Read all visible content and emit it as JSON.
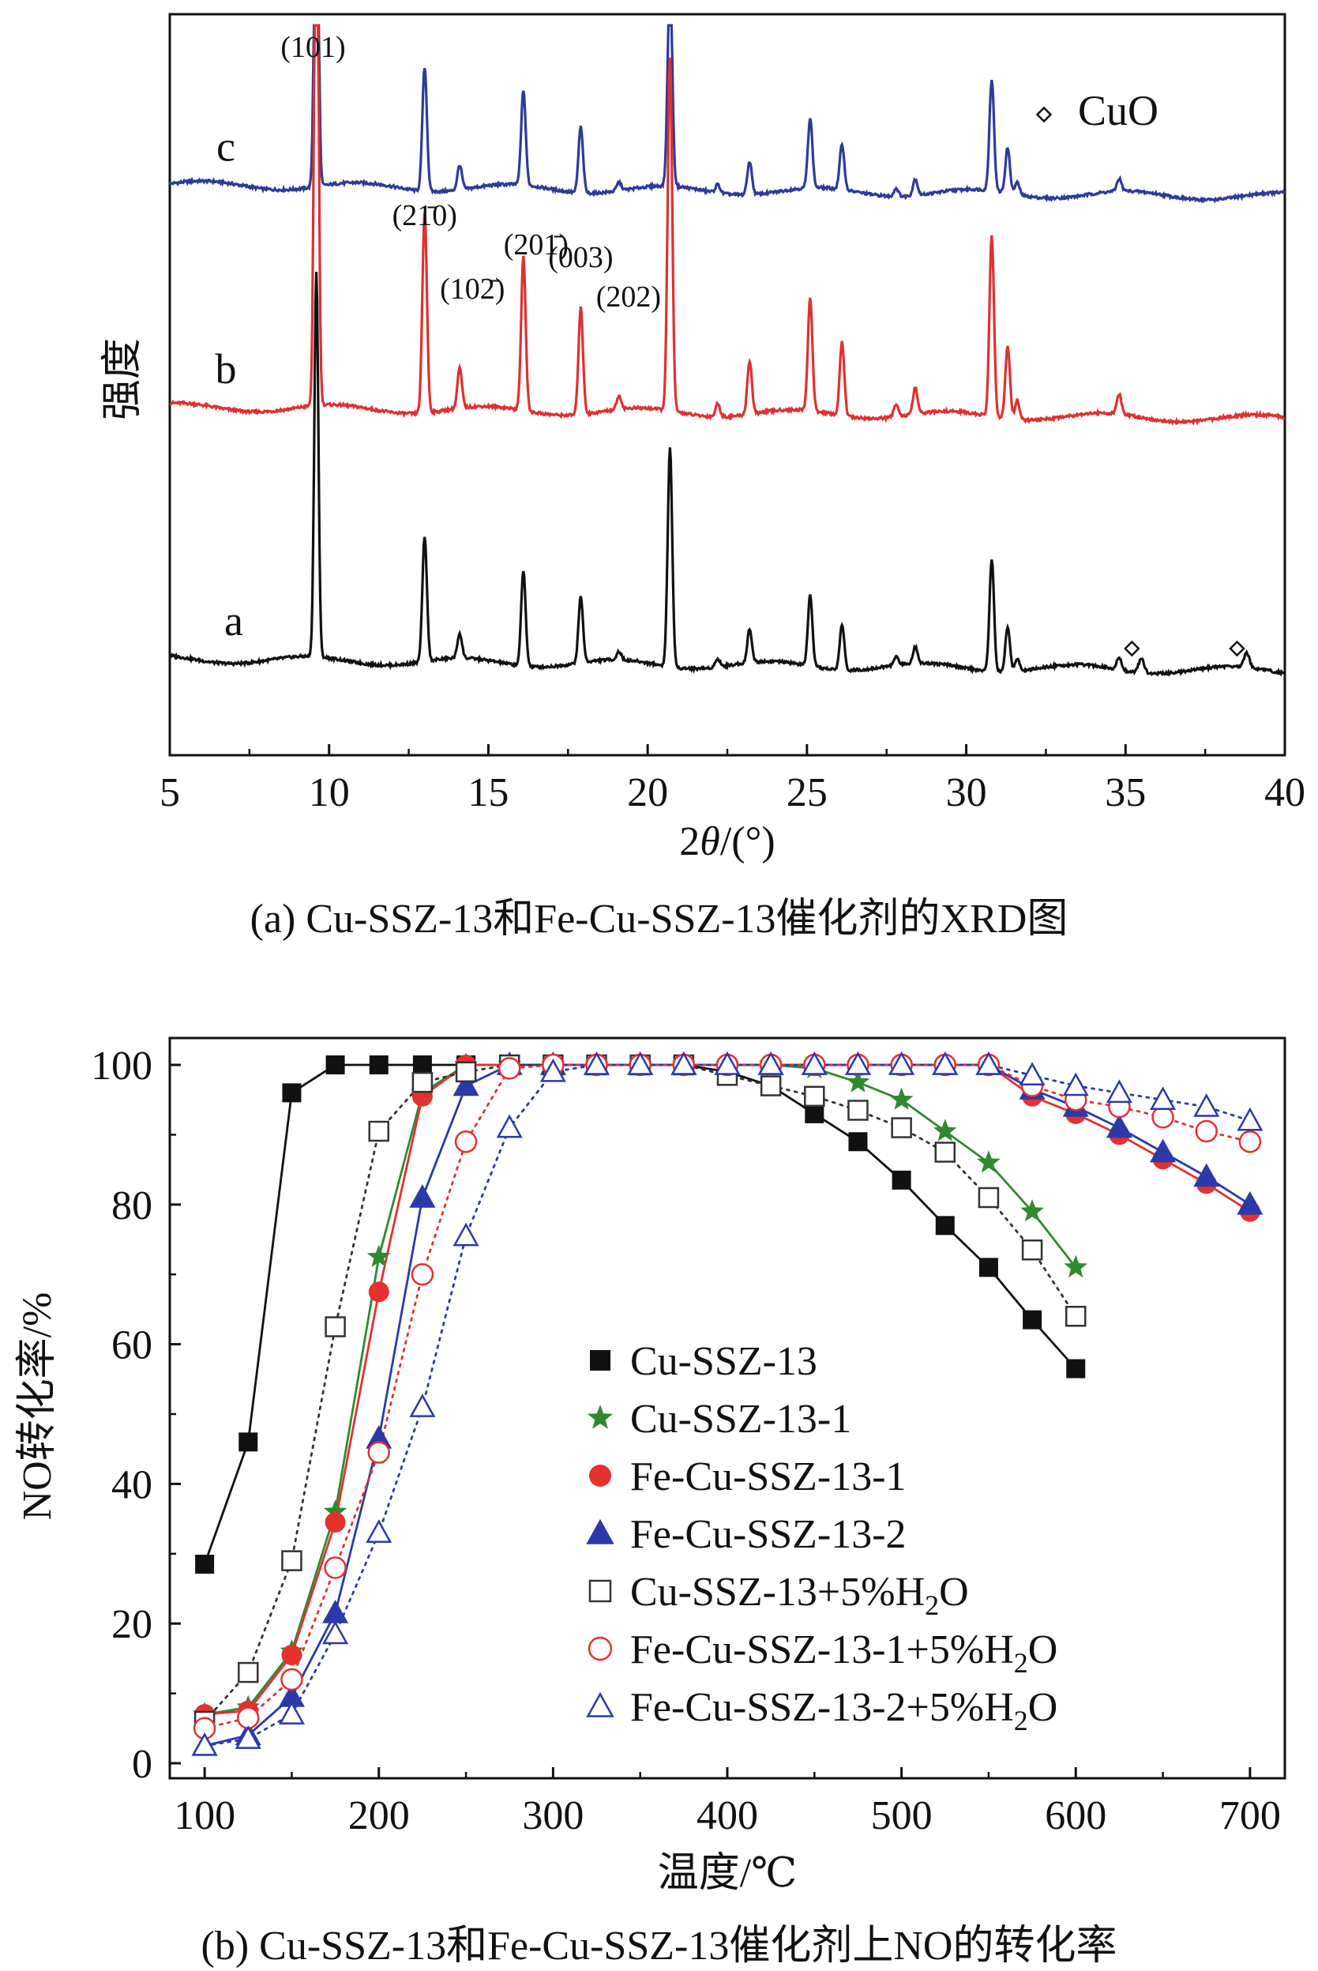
{
  "chart_data": [
    {
      "type": "line",
      "panel": "a",
      "caption": "(a) Cu-SSZ-13和Fe-Cu-SSZ-13催化剂的XRD图",
      "xlabel": "2θ/(°)",
      "ylabel": "强度",
      "xlim": [
        5,
        40
      ],
      "xticks": [
        5,
        10,
        15,
        20,
        25,
        30,
        35,
        40
      ],
      "legend_text": "CuO",
      "series": [
        {
          "name": "c",
          "color": "#2e3a9a",
          "baseline": 0.77
        },
        {
          "name": "b",
          "color": "#e03030",
          "baseline": 0.47
        },
        {
          "name": "a",
          "color": "#111111",
          "baseline": 0.13
        }
      ],
      "peaks": [
        {
          "pos": 9.6,
          "height": 0.93
        },
        {
          "pos": 13.0,
          "height": 0.3
        },
        {
          "pos": 14.1,
          "height": 0.06
        },
        {
          "pos": 16.1,
          "height": 0.23
        },
        {
          "pos": 17.9,
          "height": 0.16
        },
        {
          "pos": 19.1,
          "height": 0.02
        },
        {
          "pos": 20.7,
          "height": 0.53
        },
        {
          "pos": 22.2,
          "height": 0.02
        },
        {
          "pos": 23.2,
          "height": 0.08
        },
        {
          "pos": 25.1,
          "height": 0.17
        },
        {
          "pos": 26.1,
          "height": 0.11
        },
        {
          "pos": 27.8,
          "height": 0.02
        },
        {
          "pos": 28.4,
          "height": 0.04
        },
        {
          "pos": 30.8,
          "height": 0.27
        },
        {
          "pos": 31.3,
          "height": 0.11
        },
        {
          "pos": 31.6,
          "height": 0.03
        },
        {
          "pos": 34.8,
          "height": 0.03
        }
      ],
      "cuo_peaks": [
        35.5,
        38.8
      ],
      "peak_labels": [
        {
          "text": "(101)",
          "pos": 9.6
        },
        {
          "text": "(21̄0)",
          "pos": 13.0
        },
        {
          "text": "(102̄)",
          "pos": 14.5
        },
        {
          "text": "(201̄)",
          "pos": 16.5
        },
        {
          "text": "(003)",
          "pos": 17.9
        },
        {
          "text": "(202)",
          "pos": 19.4
        }
      ]
    },
    {
      "type": "line",
      "panel": "b",
      "caption": "(b) Cu-SSZ-13和Fe-Cu-SSZ-13催化剂上NO的转化率",
      "xlabel": "温度/℃",
      "ylabel": "NO转化率/%",
      "xlim": [
        80,
        720
      ],
      "ylim": [
        0,
        100
      ],
      "xticks": [
        100,
        200,
        300,
        400,
        500,
        600,
        700
      ],
      "yticks": [
        0,
        20,
        40,
        60,
        80,
        100
      ],
      "series": [
        {
          "name": "Cu-SSZ-13",
          "marker": "square-filled",
          "color": "#111111",
          "dash": false,
          "x": [
            100,
            125,
            150,
            175,
            200,
            225,
            250,
            275,
            300,
            325,
            350,
            375,
            400,
            425,
            450,
            475,
            500,
            525,
            550,
            575,
            600
          ],
          "y": [
            28.5,
            46,
            96,
            100,
            100,
            100,
            100,
            100,
            100,
            100,
            100,
            100,
            99,
            97,
            93,
            89,
            83.5,
            77,
            71,
            63.5,
            56.5
          ]
        },
        {
          "name": "Cu-SSZ-13-1",
          "marker": "star",
          "color": "#2f8a2f",
          "dash": false,
          "x": [
            100,
            125,
            150,
            175,
            200,
            225,
            250,
            275,
            300,
            325,
            350,
            375,
            400,
            425,
            450,
            475,
            500,
            525,
            550,
            575,
            600
          ],
          "y": [
            7,
            8,
            16,
            36,
            72.5,
            96,
            100,
            100,
            100,
            100,
            100,
            100,
            100,
            100,
            99.5,
            97.5,
            95,
            90.5,
            86,
            79,
            71
          ]
        },
        {
          "name": "Fe-Cu-SSZ-13-1",
          "marker": "circle-filled",
          "color": "#e53030",
          "dash": false,
          "x": [
            100,
            125,
            150,
            175,
            200,
            225,
            250,
            275,
            300,
            325,
            350,
            375,
            400,
            425,
            450,
            475,
            500,
            525,
            550,
            575,
            600,
            625,
            650,
            675,
            700
          ],
          "y": [
            7,
            7.5,
            15.5,
            34.5,
            67.5,
            95.5,
            100,
            100,
            100,
            100,
            100,
            100,
            100,
            100,
            100,
            100,
            100,
            100,
            100,
            95.5,
            93,
            90,
            86.5,
            83,
            79
          ]
        },
        {
          "name": "Fe-Cu-SSZ-13-2",
          "marker": "triangle-filled",
          "color": "#2b3aa8",
          "dash": false,
          "x": [
            100,
            125,
            150,
            175,
            200,
            225,
            250,
            275,
            300,
            325,
            350,
            375,
            400,
            425,
            450,
            475,
            500,
            525,
            550,
            575,
            600,
            625,
            650,
            675,
            700
          ],
          "y": [
            2.5,
            4,
            9.5,
            21.5,
            46.5,
            81,
            97,
            100,
            100,
            100,
            100,
            100,
            100,
            100,
            100,
            100,
            100,
            100,
            100,
            96.5,
            94,
            91,
            87.5,
            84,
            80
          ]
        },
        {
          "name": "Cu-SSZ-13+5%H2O",
          "marker": "square-open",
          "color": "#333333",
          "dash": true,
          "x": [
            100,
            125,
            150,
            175,
            200,
            225,
            250,
            275,
            300,
            325,
            350,
            375,
            400,
            425,
            450,
            475,
            500,
            525,
            550,
            575,
            600
          ],
          "y": [
            6,
            13,
            29,
            62.5,
            90.5,
            97.5,
            99,
            100,
            100,
            100,
            100,
            100,
            98.5,
            97,
            95.5,
            93.5,
            91,
            87.5,
            81,
            73.5,
            64
          ]
        },
        {
          "name": "Fe-Cu-SSZ-13-1+5%H2O",
          "marker": "circle-open",
          "color": "#e53030",
          "dash": true,
          "x": [
            100,
            125,
            150,
            175,
            200,
            225,
            250,
            275,
            300,
            325,
            350,
            375,
            400,
            425,
            450,
            475,
            500,
            525,
            550,
            575,
            600,
            625,
            650,
            675,
            700
          ],
          "y": [
            5,
            6.5,
            12,
            28,
            44.5,
            70,
            89,
            99.5,
            100,
            100,
            100,
            100,
            100,
            100,
            100,
            100,
            100,
            100,
            100,
            97,
            95,
            94,
            92.5,
            90.5,
            89
          ]
        },
        {
          "name": "Fe-Cu-SSZ-13-2+5%H2O",
          "marker": "triangle-open",
          "color": "#2b3aa8",
          "dash": true,
          "x": [
            100,
            125,
            150,
            175,
            200,
            225,
            250,
            275,
            300,
            325,
            350,
            375,
            400,
            425,
            450,
            475,
            500,
            525,
            550,
            575,
            600,
            625,
            650,
            675,
            700
          ],
          "y": [
            2.5,
            3.5,
            7,
            18.5,
            33,
            51,
            75.5,
            91,
            99,
            100,
            100,
            100,
            100,
            100,
            100,
            100,
            100,
            100,
            100,
            98.5,
            97,
            96,
            95,
            94,
            92
          ]
        }
      ],
      "legend": [
        {
          "label": "Cu-SSZ-13"
        },
        {
          "label": "Cu-SSZ-13-1"
        },
        {
          "label": "Fe-Cu-SSZ-13-1"
        },
        {
          "label": "Fe-Cu-SSZ-13-2"
        },
        {
          "label": "Cu-SSZ-13+5%H",
          "sub": "2",
          "tail": "O"
        },
        {
          "label": "Fe-Cu-SSZ-13-1+5%H",
          "sub": "2",
          "tail": "O"
        },
        {
          "label": "Fe-Cu-SSZ-13-2+5%H",
          "sub": "2",
          "tail": "O"
        }
      ]
    }
  ]
}
